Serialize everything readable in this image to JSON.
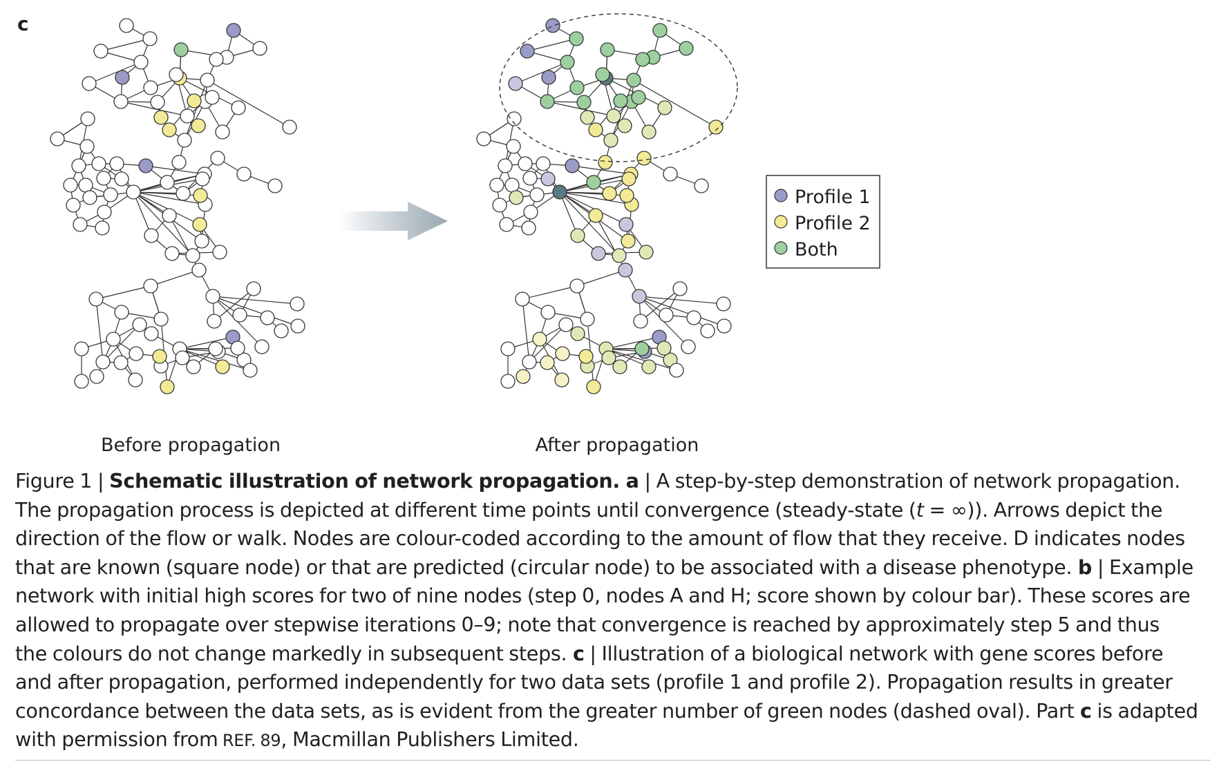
{
  "figure": {
    "panel_letter": "c",
    "before_label": "Before propagation",
    "after_label": "After propagation",
    "legend": [
      {
        "label": "Profile 1",
        "color": "#9b9bc8"
      },
      {
        "label": "Profile 2",
        "color": "#f2ea96"
      },
      {
        "label": "Both",
        "color": "#9dcf9f"
      }
    ],
    "colors": {
      "profile1": "#9b9bc8",
      "profile1_light": "#c9c6de",
      "profile2": "#f2ea96",
      "profile2_light": "#e1e8b6",
      "both": "#9dcf9f",
      "pale_yellow": "#f6f2c7",
      "hub": "#5d7784",
      "arrow": "#9aa9b3"
    }
  },
  "caption": {
    "fig_num": "Figure 1",
    "sep": " | ",
    "title": "Schematic illustration of network propagation.",
    "part_a": " a",
    "a_text_1": "A step-by-step demonstration of network propagation.",
    "a_text_2a": "The propagation process is depicted at different time points until convergence (steady-state (",
    "t_var": "t",
    "t_eq": " = ∞",
    "a_text_2b": ")). Arrows depict the",
    "a_text_3": "direction of the flow or walk. Nodes are colour-coded according to the amount of flow that they receive. D indicates nodes",
    "a_text_4": "that are known (square node) or that are predicted (circular node) to be associated with a disease phenotype.",
    "part_b": " b",
    "b_text_1": "Example",
    "b_text_2": "network with initial high scores for two of nine nodes (step 0, nodes A and H; score shown by colour bar). These scores are",
    "b_text_3": "allowed to propagate over stepwise iterations 0–9; note that convergence is reached by approximately step 5 and thus",
    "b_text_4": "the colours do not change markedly in subsequent steps.",
    "part_c": " c",
    "c_text_1": "Illustration of a biological network with gene scores before",
    "c_text_2": "and after propagation, performed independently for two data sets (profile 1 and profile 2). Propagation results in greater",
    "c_text_3a": "concordance between the data sets, as is evident from the greater number of green nodes (dashed oval). Part",
    "c_ref": " c",
    "c_text_3b": " is adapted",
    "c_text_4a": "with permission from",
    "ref": " REF. 89",
    "c_text_4b": ", Macmillan Publishers Limited."
  }
}
